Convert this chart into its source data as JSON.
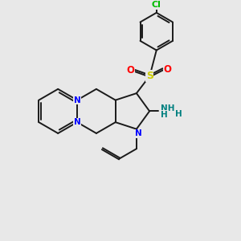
{
  "background_color": "#e8e8e8",
  "bond_color": "#1a1a1a",
  "n_color": "#0000ff",
  "o_color": "#ff0000",
  "s_color": "#cccc00",
  "cl_color": "#00bb00",
  "nh2_color": "#008080",
  "figsize": [
    3.0,
    3.0
  ],
  "dpi": 100,
  "xlim": [
    0,
    10
  ],
  "ylim": [
    0,
    10
  ]
}
